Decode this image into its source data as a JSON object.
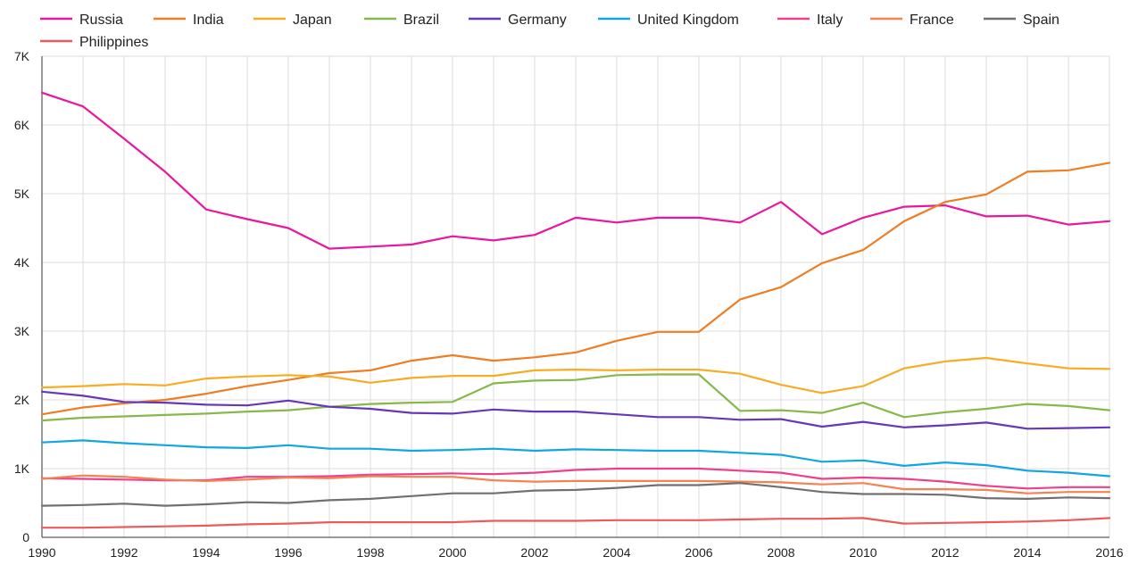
{
  "chart_data": {
    "type": "line",
    "title": "",
    "xlabel": "",
    "ylabel": "",
    "x": [
      1990,
      1991,
      1992,
      1993,
      1994,
      1995,
      1996,
      1997,
      1998,
      1999,
      2000,
      2001,
      2002,
      2003,
      2004,
      2005,
      2006,
      2007,
      2008,
      2009,
      2010,
      2011,
      2012,
      2013,
      2014,
      2015,
      2016
    ],
    "xticks": [
      "1990",
      "1992",
      "1994",
      "1996",
      "1998",
      "2000",
      "2002",
      "2004",
      "2006",
      "2008",
      "2010",
      "2012",
      "2014",
      "2016"
    ],
    "xtick_values": [
      1990,
      1992,
      1994,
      1996,
      1998,
      2000,
      2002,
      2004,
      2006,
      2008,
      2010,
      2012,
      2014,
      2016
    ],
    "yticks": [
      "0",
      "1K",
      "2K",
      "3K",
      "4K",
      "5K",
      "6K",
      "7K"
    ],
    "ytick_values": [
      0,
      1000,
      2000,
      3000,
      4000,
      5000,
      6000,
      7000
    ],
    "xlim": [
      1990,
      2016
    ],
    "ylim": [
      0,
      7000
    ],
    "grid": true,
    "legend_position": "top",
    "series": [
      {
        "name": "Russia",
        "color": "#e8179f",
        "values": [
          6470,
          6270,
          5800,
          5320,
          4770,
          4630,
          4500,
          4200,
          4230,
          4260,
          4380,
          4320,
          4400,
          4650,
          4580,
          4650,
          4650,
          4580,
          4880,
          4410,
          4650,
          4810,
          4830,
          4670,
          4680,
          4550,
          4600
        ]
      },
      {
        "name": "India",
        "color": "#ef7d22",
        "values": [
          1790,
          1890,
          1950,
          2000,
          2090,
          2200,
          2290,
          2390,
          2430,
          2570,
          2650,
          2570,
          2620,
          2690,
          2860,
          2990,
          2990,
          3460,
          3640,
          3990,
          4180,
          4600,
          4880,
          4990,
          5320,
          5340,
          5450
        ]
      },
      {
        "name": "Japan",
        "color": "#f6ad23",
        "values": [
          2180,
          2200,
          2230,
          2210,
          2310,
          2340,
          2360,
          2340,
          2250,
          2320,
          2350,
          2350,
          2430,
          2440,
          2430,
          2440,
          2440,
          2380,
          2220,
          2100,
          2200,
          2460,
          2560,
          2610,
          2530,
          2460,
          2450
        ]
      },
      {
        "name": "Brazil",
        "color": "#86b84a",
        "values": [
          1700,
          1740,
          1760,
          1780,
          1800,
          1830,
          1850,
          1900,
          1940,
          1960,
          1970,
          2240,
          2280,
          2290,
          2360,
          2370,
          2370,
          1840,
          1850,
          1810,
          1960,
          1750,
          1820,
          1870,
          1940,
          1910,
          1850
        ]
      },
      {
        "name": "Germany",
        "color": "#6637b8",
        "values": [
          2120,
          2060,
          1970,
          1960,
          1930,
          1920,
          1990,
          1900,
          1870,
          1810,
          1800,
          1860,
          1830,
          1830,
          1790,
          1750,
          1750,
          1710,
          1720,
          1610,
          1680,
          1600,
          1630,
          1670,
          1580,
          1590,
          1600
        ]
      },
      {
        "name": "United Kingdom",
        "color": "#10a6e2",
        "values": [
          1380,
          1410,
          1370,
          1340,
          1310,
          1300,
          1340,
          1290,
          1290,
          1260,
          1270,
          1290,
          1260,
          1280,
          1270,
          1260,
          1260,
          1230,
          1200,
          1100,
          1120,
          1040,
          1090,
          1050,
          970,
          940,
          890
        ]
      },
      {
        "name": "Italy",
        "color": "#ee3f8a",
        "values": [
          860,
          850,
          840,
          830,
          830,
          880,
          880,
          890,
          910,
          920,
          930,
          920,
          940,
          980,
          1000,
          1000,
          1000,
          970,
          940,
          850,
          870,
          850,
          810,
          750,
          710,
          730,
          730
        ]
      },
      {
        "name": "France",
        "color": "#f58352",
        "values": [
          850,
          900,
          880,
          840,
          820,
          840,
          870,
          860,
          890,
          880,
          880,
          830,
          810,
          820,
          820,
          820,
          820,
          810,
          800,
          770,
          790,
          700,
          700,
          690,
          640,
          660,
          660
        ]
      },
      {
        "name": "Spain",
        "color": "#707070",
        "values": [
          460,
          470,
          490,
          460,
          480,
          510,
          500,
          540,
          560,
          600,
          640,
          640,
          680,
          690,
          720,
          760,
          760,
          790,
          730,
          660,
          630,
          630,
          620,
          570,
          560,
          580,
          570
        ]
      },
      {
        "name": "Philippines",
        "color": "#ec5a5a",
        "values": [
          140,
          140,
          150,
          160,
          170,
          190,
          200,
          220,
          220,
          220,
          220,
          240,
          240,
          240,
          250,
          250,
          250,
          260,
          270,
          270,
          280,
          200,
          210,
          220,
          230,
          250,
          280
        ]
      }
    ]
  }
}
